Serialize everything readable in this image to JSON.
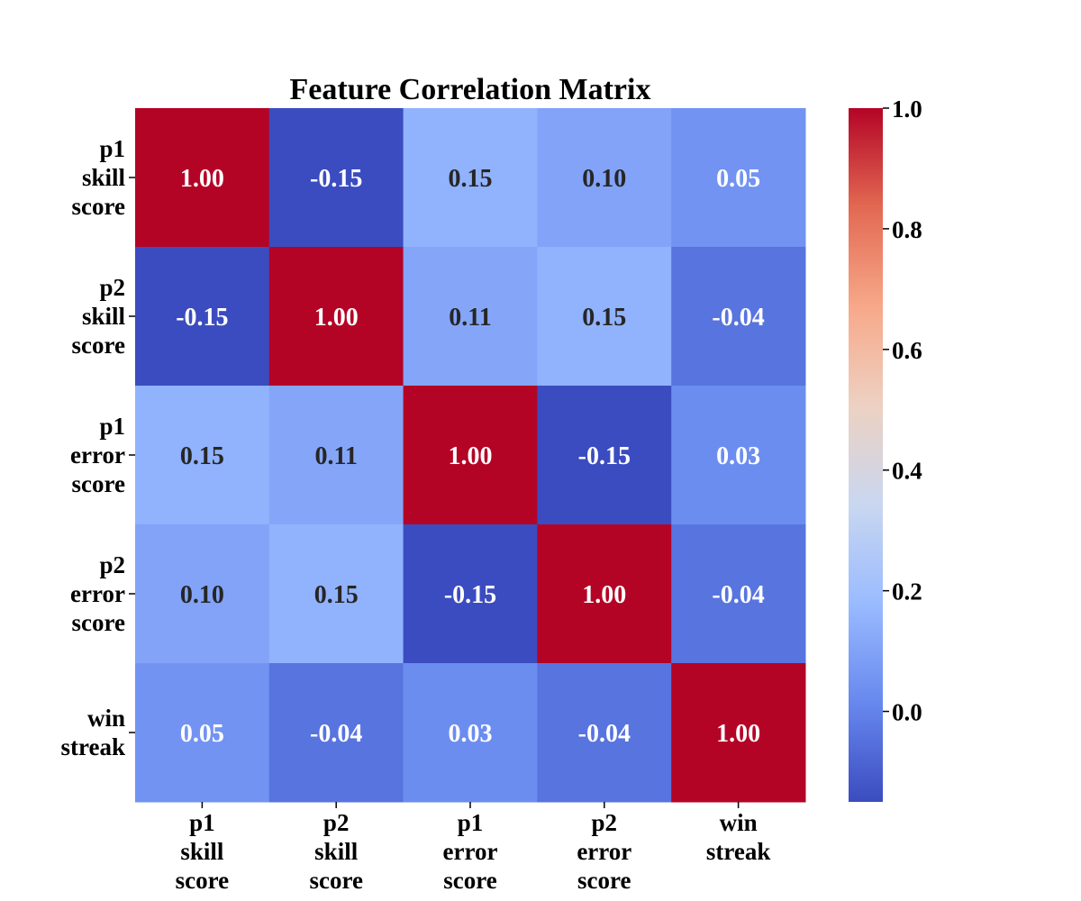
{
  "chart_data": {
    "type": "heatmap",
    "title": "Feature Correlation Matrix",
    "x_labels": [
      [
        "p1",
        "skill",
        "score"
      ],
      [
        "p2",
        "skill",
        "score"
      ],
      [
        "p1",
        "error",
        "score"
      ],
      [
        "p2",
        "error",
        "score"
      ],
      [
        "win",
        "streak"
      ]
    ],
    "y_labels": [
      [
        "p1",
        "skill",
        "score"
      ],
      [
        "p2",
        "skill",
        "score"
      ],
      [
        "p1",
        "error",
        "score"
      ],
      [
        "p2",
        "error",
        "score"
      ],
      [
        "win",
        "streak"
      ]
    ],
    "values": [
      [
        1.0,
        -0.15,
        0.15,
        0.1,
        0.05
      ],
      [
        -0.15,
        1.0,
        0.11,
        0.15,
        -0.04
      ],
      [
        0.15,
        0.11,
        1.0,
        -0.15,
        0.03
      ],
      [
        0.1,
        0.15,
        -0.15,
        1.0,
        -0.04
      ],
      [
        0.05,
        -0.04,
        0.03,
        -0.04,
        1.0
      ]
    ],
    "annotation_format": "0.00",
    "colormap": "coolwarm",
    "colormap_stops": [
      "#3b4cc0",
      "#6788ee",
      "#9abbff",
      "#c9d7f0",
      "#edd1c2",
      "#f7a889",
      "#e26952",
      "#b40426"
    ],
    "vmin": -0.15,
    "vmax": 1.0,
    "colorbar": {
      "ticks": [
        0.0,
        0.2,
        0.4,
        0.6,
        0.8,
        1.0
      ],
      "tick_labels": [
        "0.0",
        "0.2",
        "0.4",
        "0.6",
        "0.8",
        "1.0"
      ],
      "position": "right"
    },
    "grid": false,
    "legend": "none"
  }
}
